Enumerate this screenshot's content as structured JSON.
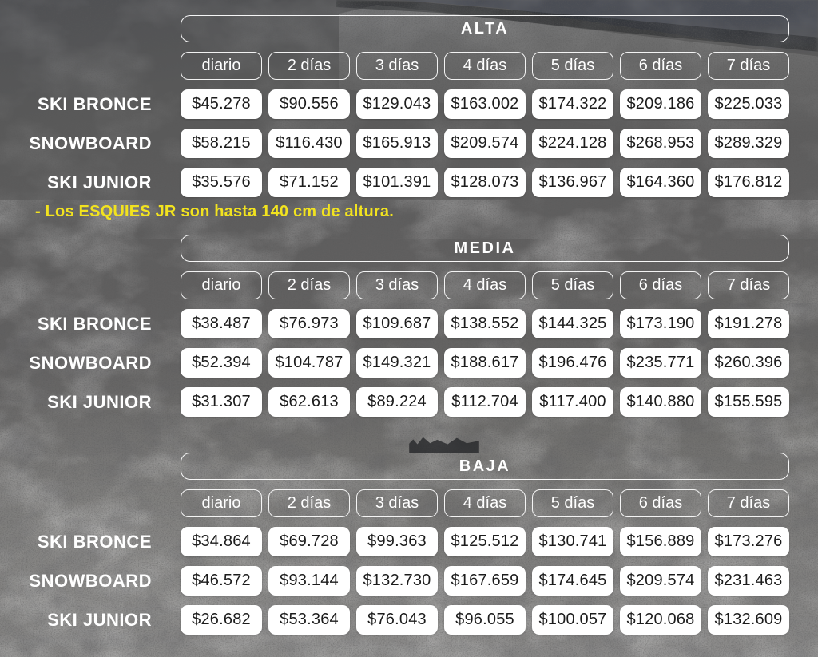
{
  "columns": [
    "diario",
    "2 días",
    "3 días",
    "4 días",
    "5 días",
    "6 días",
    "7 días"
  ],
  "sections": [
    {
      "title": "ALTA",
      "rows": [
        {
          "label": "SKI BRONCE",
          "values": [
            "$45.278",
            "$90.556",
            "$129.043",
            "$163.002",
            "$174.322",
            "$209.186",
            "$225.033"
          ]
        },
        {
          "label": "SNOWBOARD",
          "values": [
            "$58.215",
            "$116.430",
            "$165.913",
            "$209.574",
            "$224.128",
            "$268.953",
            "$289.329"
          ]
        },
        {
          "label": "SKI JUNIOR",
          "values": [
            "$35.576",
            "$71.152",
            "$101.391",
            "$128.073",
            "$136.967",
            "$164.360",
            "$176.812"
          ]
        }
      ]
    },
    {
      "title": "MEDIA",
      "rows": [
        {
          "label": "SKI BRONCE",
          "values": [
            "$38.487",
            "$76.973",
            "$109.687",
            "$138.552",
            "$144.325",
            "$173.190",
            "$191.278"
          ]
        },
        {
          "label": "SNOWBOARD",
          "values": [
            "$52.394",
            "$104.787",
            "$149.321",
            "$188.617",
            "$196.476",
            "$235.771",
            "$260.396"
          ]
        },
        {
          "label": "SKI JUNIOR",
          "values": [
            "$31.307",
            "$62.613",
            "$89.224",
            "$112.704",
            "$117.400",
            "$140.880",
            "$155.595"
          ]
        }
      ]
    },
    {
      "title": "BAJA",
      "rows": [
        {
          "label": "SKI BRONCE",
          "values": [
            "$34.864",
            "$69.728",
            "$99.363",
            "$125.512",
            "$130.741",
            "$156.889",
            "$173.276"
          ]
        },
        {
          "label": "SNOWBOARD",
          "values": [
            "$46.572",
            "$93.144",
            "$132.730",
            "$167.659",
            "$174.645",
            "$209.574",
            "$231.463"
          ]
        },
        {
          "label": "SKI JUNIOR",
          "values": [
            "$26.682",
            "$53.364",
            "$76.043",
            "$96.055",
            "$100.057",
            "$120.068",
            "$132.609"
          ]
        }
      ]
    }
  ],
  "note": {
    "text": "- Los ESQUIES JR son hasta 140 cm de altura."
  },
  "colors": {
    "accent_yellow": "#F2E31F",
    "pill_border": "#FFFFFF",
    "cell_bg": "#FFFFFF",
    "cell_text": "#1C1C1C",
    "text_white": "#FFFFFF",
    "background_gray": "#5E5E5E"
  }
}
